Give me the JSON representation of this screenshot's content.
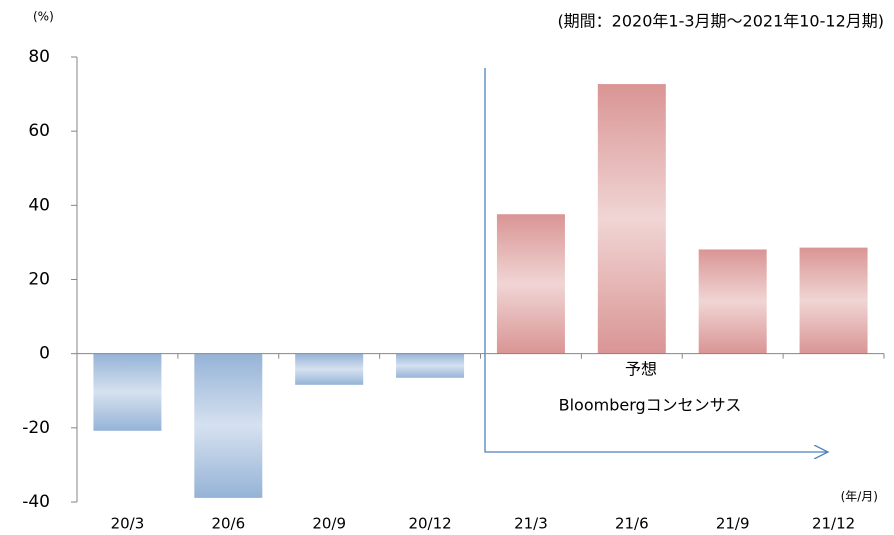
{
  "chart_data": {
    "type": "bar",
    "y_unit_label": "(%)",
    "period_note": "(期間：2020年1-3月期～2021年10-12月期)",
    "x_unit_label": "(年/月)",
    "annotations": [
      "予想",
      "Bloombergコンセンサス"
    ],
    "categories": [
      "20/3",
      "20/6",
      "20/9",
      "20/12",
      "21/3",
      "21/6",
      "21/9",
      "21/12"
    ],
    "values": [
      -20.8,
      -38.9,
      -8.4,
      -6.5,
      37.6,
      72.7,
      28.1,
      28.6
    ],
    "colors": [
      "#95b3d7",
      "#95b3d7",
      "#95b3d7",
      "#95b3d7",
      "#d99594",
      "#d99594",
      "#d99594",
      "#d99594"
    ],
    "ylim": [
      -40,
      80
    ],
    "yticks": [
      -40,
      -20,
      0,
      20,
      40,
      60,
      80
    ],
    "grid": false
  }
}
